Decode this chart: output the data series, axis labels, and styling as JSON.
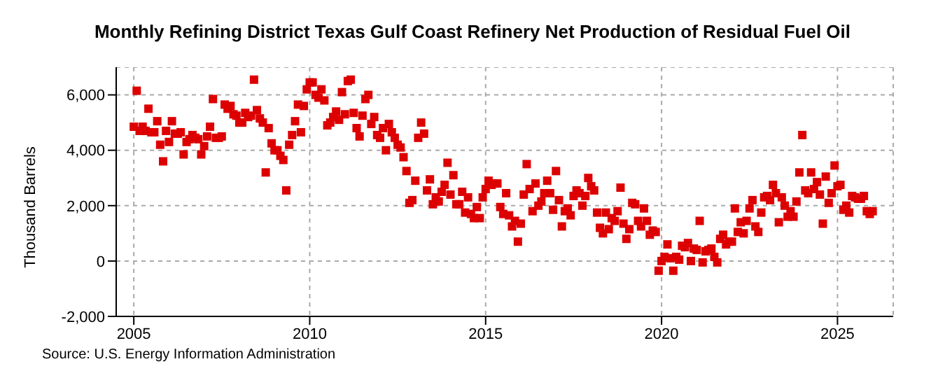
{
  "chart_data": {
    "type": "scatter",
    "title": "Monthly Refining District Texas Gulf Coast Refinery Net Production of Residual Fuel Oil",
    "ylabel": "Thousand Barrels",
    "annotations": [
      "Source: U.S. Energy Information Administration"
    ],
    "xlim": [
      "2004-07",
      "2026-08"
    ],
    "xticks": [
      "2005",
      "2010",
      "2015",
      "2020",
      "2025"
    ],
    "ylim": [
      -2000,
      7000
    ],
    "yticks": [
      {
        "value": -2000,
        "label": "-2,000"
      },
      {
        "value": 0,
        "label": "0"
      },
      {
        "value": 2000,
        "label": "2,000"
      },
      {
        "value": 4000,
        "label": "4,000"
      },
      {
        "value": 6000,
        "label": "6,000"
      }
    ],
    "grid": true,
    "marker": "square",
    "legend": false,
    "x": [
      "2005-01",
      "2005-02",
      "2005-03",
      "2005-04",
      "2005-05",
      "2005-06",
      "2005-07",
      "2005-08",
      "2005-09",
      "2005-10",
      "2005-11",
      "2005-12",
      "2006-01",
      "2006-02",
      "2006-03",
      "2006-04",
      "2006-05",
      "2006-06",
      "2006-07",
      "2006-08",
      "2006-09",
      "2006-10",
      "2006-11",
      "2006-12",
      "2007-01",
      "2007-02",
      "2007-03",
      "2007-04",
      "2007-05",
      "2007-06",
      "2007-07",
      "2007-08",
      "2007-09",
      "2007-10",
      "2007-11",
      "2007-12",
      "2008-01",
      "2008-02",
      "2008-03",
      "2008-04",
      "2008-05",
      "2008-06",
      "2008-07",
      "2008-08",
      "2008-09",
      "2008-10",
      "2008-11",
      "2008-12",
      "2009-01",
      "2009-02",
      "2009-03",
      "2009-04",
      "2009-05",
      "2009-06",
      "2009-07",
      "2009-08",
      "2009-09",
      "2009-10",
      "2009-11",
      "2009-12",
      "2010-01",
      "2010-02",
      "2010-03",
      "2010-04",
      "2010-05",
      "2010-06",
      "2010-07",
      "2010-08",
      "2010-09",
      "2010-10",
      "2010-11",
      "2010-12",
      "2011-01",
      "2011-02",
      "2011-03",
      "2011-04",
      "2011-05",
      "2011-06",
      "2011-07",
      "2011-08",
      "2011-09",
      "2011-10",
      "2011-11",
      "2011-12",
      "2012-01",
      "2012-02",
      "2012-03",
      "2012-04",
      "2012-05",
      "2012-06",
      "2012-07",
      "2012-08",
      "2012-09",
      "2012-10",
      "2012-11",
      "2012-12",
      "2013-01",
      "2013-02",
      "2013-03",
      "2013-04",
      "2013-05",
      "2013-06",
      "2013-07",
      "2013-08",
      "2013-09",
      "2013-10",
      "2013-11",
      "2013-12",
      "2014-01",
      "2014-02",
      "2014-03",
      "2014-04",
      "2014-05",
      "2014-06",
      "2014-07",
      "2014-08",
      "2014-09",
      "2014-10",
      "2014-11",
      "2014-12",
      "2015-01",
      "2015-02",
      "2015-03",
      "2015-04",
      "2015-05",
      "2015-06",
      "2015-07",
      "2015-08",
      "2015-09",
      "2015-10",
      "2015-11",
      "2015-12",
      "2016-01",
      "2016-02",
      "2016-03",
      "2016-04",
      "2016-05",
      "2016-06",
      "2016-07",
      "2016-08",
      "2016-09",
      "2016-10",
      "2016-11",
      "2016-12",
      "2017-01",
      "2017-02",
      "2017-03",
      "2017-04",
      "2017-05",
      "2017-06",
      "2017-07",
      "2017-08",
      "2017-09",
      "2017-10",
      "2017-11",
      "2017-12",
      "2018-01",
      "2018-02",
      "2018-03",
      "2018-04",
      "2018-05",
      "2018-06",
      "2018-07",
      "2018-08",
      "2018-09",
      "2018-10",
      "2018-11",
      "2018-12",
      "2019-01",
      "2019-02",
      "2019-03",
      "2019-04",
      "2019-05",
      "2019-06",
      "2019-07",
      "2019-08",
      "2019-09",
      "2019-10",
      "2019-11",
      "2019-12",
      "2020-01",
      "2020-02",
      "2020-03",
      "2020-04",
      "2020-05",
      "2020-06",
      "2020-07",
      "2020-08",
      "2020-09",
      "2020-10",
      "2020-11",
      "2020-12",
      "2021-01",
      "2021-02",
      "2021-03",
      "2021-04",
      "2021-05",
      "2021-06",
      "2021-07",
      "2021-08",
      "2021-09",
      "2021-10",
      "2021-11",
      "2021-12",
      "2022-01",
      "2022-02",
      "2022-03",
      "2022-04",
      "2022-05",
      "2022-06",
      "2022-07",
      "2022-08",
      "2022-09",
      "2022-10",
      "2022-11",
      "2022-12",
      "2023-01",
      "2023-02",
      "2023-03",
      "2023-04",
      "2023-05",
      "2023-06",
      "2023-07",
      "2023-08",
      "2023-09",
      "2023-10",
      "2023-11",
      "2023-12",
      "2024-01",
      "2024-02",
      "2024-03",
      "2024-04",
      "2024-05",
      "2024-06",
      "2024-07",
      "2024-08",
      "2024-09",
      "2024-10",
      "2024-11",
      "2024-12",
      "2025-01",
      "2025-02",
      "2025-03",
      "2025-04",
      "2025-05",
      "2025-06",
      "2025-07",
      "2025-08",
      "2025-09",
      "2025-10",
      "2025-11",
      "2025-12",
      "2026-01"
    ],
    "series": [
      {
        "color": "#dd0000",
        "values": [
          4850,
          6150,
          4700,
          4850,
          4700,
          5500,
          4650,
          4650,
          5050,
          4200,
          3600,
          4700,
          4300,
          5050,
          4600,
          4600,
          4650,
          3850,
          4300,
          4400,
          4550,
          4450,
          4400,
          3850,
          4150,
          4500,
          4850,
          5850,
          4450,
          4450,
          4500,
          5650,
          5500,
          5600,
          5300,
          5250,
          5000,
          5000,
          5350,
          5200,
          5250,
          6550,
          5450,
          5150,
          5000,
          3200,
          4800,
          4250,
          4000,
          4000,
          3800,
          3650,
          2550,
          4200,
          4550,
          5050,
          5650,
          4650,
          5600,
          6200,
          6450,
          6450,
          6000,
          5900,
          6200,
          5800,
          4900,
          5000,
          5200,
          5400,
          5100,
          6100,
          5300,
          6500,
          6550,
          5350,
          4800,
          4500,
          5250,
          5850,
          6000,
          4950,
          5200,
          4550,
          4450,
          4800,
          4000,
          4950,
          4650,
          4450,
          4200,
          4100,
          3750,
          3250,
          2100,
          2200,
          2900,
          4450,
          5000,
          4600,
          2550,
          2950,
          2050,
          2300,
          2150,
          2500,
          2750,
          3550,
          2400,
          3100,
          2050,
          2050,
          2500,
          1750,
          2300,
          1700,
          1550,
          1950,
          1550,
          2300,
          2600,
          2900,
          2750,
          2800,
          2800,
          1950,
          1700,
          2450,
          1650,
          1250,
          1450,
          700,
          1350,
          2400,
          3500,
          2600,
          1800,
          2800,
          2000,
          2150,
          2450,
          2900,
          2450,
          1850,
          3250,
          2200,
          1250,
          1800,
          1900,
          1650,
          2350,
          2550,
          2450,
          2000,
          2350,
          3000,
          2700,
          2550,
          1750,
          1200,
          1000,
          1750,
          1150,
          1550,
          1450,
          1800,
          2650,
          1350,
          800,
          1150,
          2100,
          2050,
          1450,
          1250,
          1900,
          1450,
          950,
          1100,
          1050,
          -350,
          0,
          150,
          600,
          100,
          -350,
          150,
          50,
          550,
          500,
          650,
          0,
          450,
          400,
          1450,
          -50,
          350,
          400,
          450,
          150,
          -50,
          800,
          950,
          600,
          700,
          700,
          1900,
          1050,
          1400,
          1000,
          1450,
          1900,
          2200,
          1250,
          1050,
          1750,
          2300,
          2350,
          2200,
          2750,
          2450,
          1400,
          2300,
          2000,
          1600,
          1800,
          1600,
          2150,
          3200,
          4550,
          2550,
          2450,
          3200,
          2600,
          2850,
          2400,
          1350,
          3050,
          2100,
          2450,
          3450,
          2700,
          2750,
          1850,
          2000,
          1750,
          2350,
          2300,
          2250,
          2250,
          2350,
          1800,
          1700,
          1800
        ]
      }
    ]
  }
}
